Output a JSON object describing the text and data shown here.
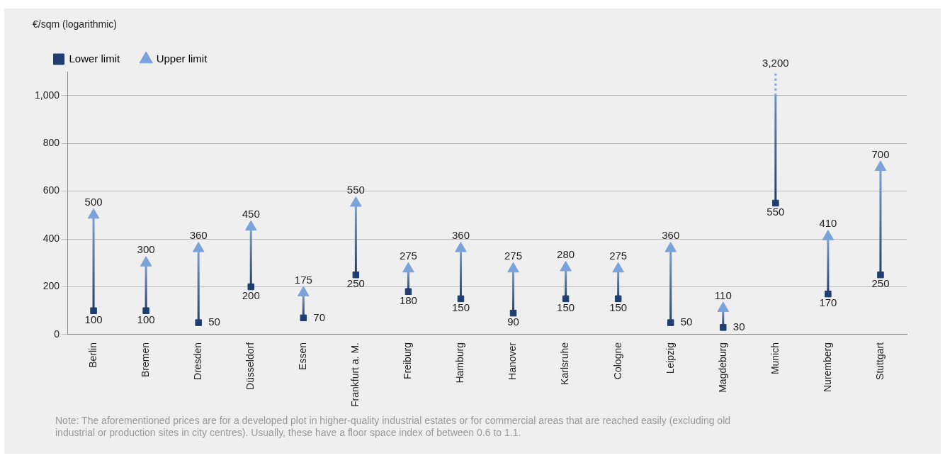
{
  "chart_data": {
    "type": "scatter",
    "ylabel": "€/sqm (logarithmic)",
    "categories": [
      "Berlin",
      "Bremen",
      "Dresden",
      "Düsseldorf",
      "Essen",
      "Frankfurt a. M.",
      "Freiburg",
      "Hamburg",
      "Hanover",
      "Karlsruhe",
      "Cologne",
      "Leipzig",
      "Magdeburg",
      "Munich",
      "Nuremberg",
      "Stuttgart"
    ],
    "series": [
      {
        "name": "Lower limit",
        "color": "#1f3d6e",
        "marker": "square",
        "values": [
          100,
          100,
          50,
          200,
          70,
          250,
          180,
          150,
          90,
          150,
          150,
          50,
          30,
          550,
          170,
          250
        ]
      },
      {
        "name": "Upper limit",
        "color": "#7ba3d9",
        "marker": "triangle",
        "values": [
          500,
          300,
          360,
          450,
          175,
          550,
          275,
          360,
          275,
          280,
          275,
          360,
          110,
          null,
          410,
          700
        ]
      }
    ],
    "ylim": [
      0,
      1100
    ],
    "yticks": [
      0,
      200,
      400,
      600,
      800,
      {
        "value": 1000,
        "label": "1,000"
      }
    ],
    "grid": "y",
    "legend": "top left",
    "data_labels": true,
    "annotations": [
      {
        "text": "3,200",
        "x": "Munich"
      },
      "Note: The aforementioned prices are for a developed plot in higher-quality industrial estates or for commercial areas that are reached easily (excluding old industrial or production sites in city centres). Usually, these have a floor space index of between 0.6 to 1.1."
    ]
  }
}
